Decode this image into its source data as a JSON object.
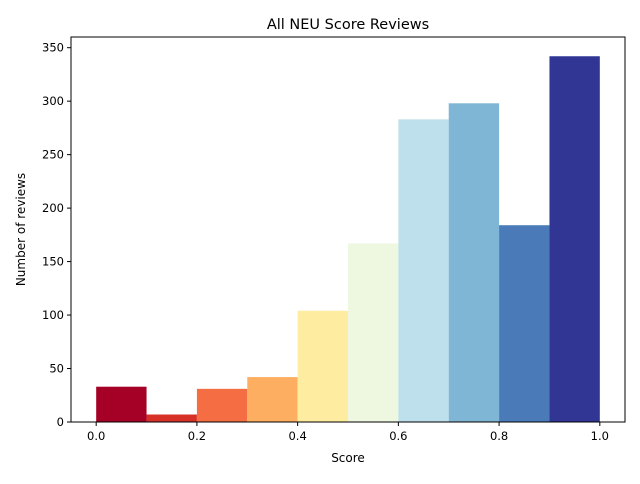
{
  "chart_data": {
    "type": "bar",
    "title": "All NEU Score Reviews",
    "xlabel": "Score",
    "ylabel": "Number of reviews",
    "xlim": [
      -0.05,
      1.05
    ],
    "ylim": [
      0,
      360
    ],
    "grid": false,
    "legend": "none",
    "bin_width": 0.1,
    "bins": [
      {
        "x0": 0.0,
        "x1": 0.1,
        "value": 33,
        "color": "#a50026"
      },
      {
        "x0": 0.1,
        "x1": 0.2,
        "value": 7,
        "color": "#d73027"
      },
      {
        "x0": 0.2,
        "x1": 0.3,
        "value": 31,
        "color": "#f46d43"
      },
      {
        "x0": 0.3,
        "x1": 0.4,
        "value": 42,
        "color": "#fdae61"
      },
      {
        "x0": 0.4,
        "x1": 0.5,
        "value": 104,
        "color": "#feeda1"
      },
      {
        "x0": 0.5,
        "x1": 0.6,
        "value": 167,
        "color": "#eef7df"
      },
      {
        "x0": 0.6,
        "x1": 0.7,
        "value": 283,
        "color": "#bde0ec"
      },
      {
        "x0": 0.7,
        "x1": 0.8,
        "value": 298,
        "color": "#7fb5d5"
      },
      {
        "x0": 0.8,
        "x1": 0.9,
        "value": 184,
        "color": "#4a7ab7"
      },
      {
        "x0": 0.9,
        "x1": 1.0,
        "value": 342,
        "color": "#313695"
      }
    ],
    "x_ticks": [
      {
        "value": 0.0,
        "label": "0.0"
      },
      {
        "value": 0.2,
        "label": "0.2"
      },
      {
        "value": 0.4,
        "label": "0.4"
      },
      {
        "value": 0.6,
        "label": "0.6"
      },
      {
        "value": 0.8,
        "label": "0.8"
      },
      {
        "value": 1.0,
        "label": "1.0"
      }
    ],
    "y_ticks": [
      {
        "value": 0,
        "label": "0"
      },
      {
        "value": 50,
        "label": "50"
      },
      {
        "value": 100,
        "label": "100"
      },
      {
        "value": 150,
        "label": "150"
      },
      {
        "value": 200,
        "label": "200"
      },
      {
        "value": 250,
        "label": "250"
      },
      {
        "value": 300,
        "label": "300"
      },
      {
        "value": 350,
        "label": "350"
      }
    ]
  }
}
